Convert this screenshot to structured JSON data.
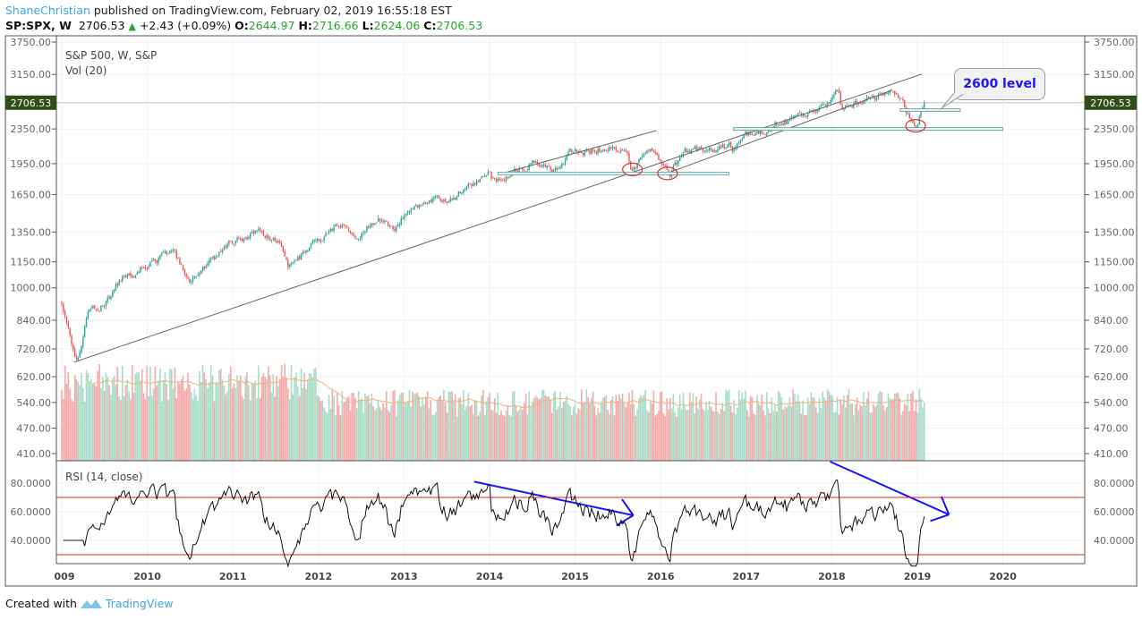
{
  "header": {
    "author": "ShaneChristian",
    "published_text": "published on TradingView.com, February 02, 2019 16:55:18 EST",
    "symbol": "SP:SPX, W",
    "last": "2706.53",
    "change": "+2.43 (+0.09%)",
    "open_label": "O:",
    "open": "2644.97",
    "high_label": "H:",
    "high": "2716.66",
    "low_label": "L:",
    "low": "2624.06",
    "close_label": "C:",
    "close": "2706.53"
  },
  "legend": {
    "title": "S&P 500, W, S&P",
    "volume": "Vol (20)",
    "rsi": "RSI (14, close)"
  },
  "callout": {
    "text": "2600 level"
  },
  "footer": {
    "created_with": "Created with",
    "brand": "TradingView"
  },
  "colors": {
    "up": "#26a69a",
    "down": "#ef5350",
    "vol_up": "#a8dcc8",
    "vol_down": "#f5a9a9",
    "vol_ma": "#f4b183",
    "rsi_band": "#e02020",
    "annotation": "#1a14ff",
    "last_price_bg": "#2e4d17"
  },
  "chart_data": {
    "type": "candlestick",
    "title": "S&P 500, W, S&P",
    "scale": "log",
    "ylim": [
      410,
      3750
    ],
    "xlim": [
      2008.95,
      2020.95
    ],
    "price_ticks": [
      "3750.00",
      "3150.00",
      "2350.00",
      "1950.00",
      "1650.00",
      "1350.00",
      "1150.00",
      "1000.00",
      "840.00",
      "720.00",
      "620.00",
      "540.00",
      "470.00",
      "410.00"
    ],
    "last_price_label": "2706.53",
    "x_ticks": [
      "009",
      "2010",
      "2011",
      "2012",
      "2013",
      "2014",
      "2015",
      "2016",
      "2017",
      "2018",
      "2019",
      "2020"
    ],
    "close_anchors": [
      [
        2009.0,
        900
      ],
      [
        2009.1,
        760
      ],
      [
        2009.18,
        680
      ],
      [
        2009.3,
        870
      ],
      [
        2009.5,
        910
      ],
      [
        2009.7,
        1050
      ],
      [
        2010.0,
        1130
      ],
      [
        2010.3,
        1210
      ],
      [
        2010.5,
        1040
      ],
      [
        2010.7,
        1140
      ],
      [
        2011.0,
        1280
      ],
      [
        2011.3,
        1360
      ],
      [
        2011.55,
        1300
      ],
      [
        2011.65,
        1110
      ],
      [
        2011.9,
        1250
      ],
      [
        2012.25,
        1400
      ],
      [
        2012.45,
        1290
      ],
      [
        2012.7,
        1460
      ],
      [
        2012.88,
        1380
      ],
      [
        2013.0,
        1480
      ],
      [
        2013.4,
        1650
      ],
      [
        2013.5,
        1590
      ],
      [
        2013.99,
        1840
      ],
      [
        2014.08,
        1740
      ],
      [
        2014.5,
        1970
      ],
      [
        2014.78,
        1870
      ],
      [
        2014.95,
        2070
      ],
      [
        2015.4,
        2120
      ],
      [
        2015.58,
        2100
      ],
      [
        2015.66,
        1900
      ],
      [
        2015.9,
        2090
      ],
      [
        2016.1,
        1850
      ],
      [
        2016.3,
        2070
      ],
      [
        2016.8,
        2130
      ],
      [
        2016.85,
        2090
      ],
      [
        2017.0,
        2270
      ],
      [
        2017.5,
        2440
      ],
      [
        2017.99,
        2680
      ],
      [
        2018.07,
        2870
      ],
      [
        2018.12,
        2600
      ],
      [
        2018.4,
        2720
      ],
      [
        2018.72,
        2930
      ],
      [
        2018.85,
        2650
      ],
      [
        2018.98,
        2350
      ],
      [
        2019.08,
        2706.53
      ]
    ],
    "rsi": {
      "period": 14,
      "upper": 70,
      "lower": 30,
      "ticks": [
        "80.0000",
        "60.0000",
        "40.0000"
      ],
      "ylim": [
        22,
        95
      ]
    },
    "volume": {
      "ma_period": 20
    },
    "annotations": {
      "trendlines": [
        [
          [
            2009.14,
            670
          ],
          [
            2019.05,
            3155
          ]
        ],
        [
          [
            2014.15,
            1850
          ],
          [
            2015.95,
            2330
          ]
        ],
        [
          [
            2016.1,
            1860
          ],
          [
            2018.7,
            2890
          ]
        ]
      ],
      "horizontal_levels": [
        {
          "price": 1850,
          "from": 2014.1,
          "to": 2016.8
        },
        {
          "price": 2350,
          "from": 2016.85,
          "to": 2020.0
        },
        {
          "price": 2600,
          "from": 2018.8,
          "to": 2019.5
        }
      ],
      "circled_lows": [
        [
          2015.67,
          1890
        ],
        [
          2016.08,
          1850
        ],
        [
          2018.98,
          2390
        ]
      ],
      "rsi_arrows": [
        [
          [
            2013.82,
            81
          ],
          [
            2015.68,
            57.5
          ]
        ],
        [
          [
            2017.98,
            95
          ],
          [
            2019.37,
            58
          ]
        ]
      ]
    }
  }
}
